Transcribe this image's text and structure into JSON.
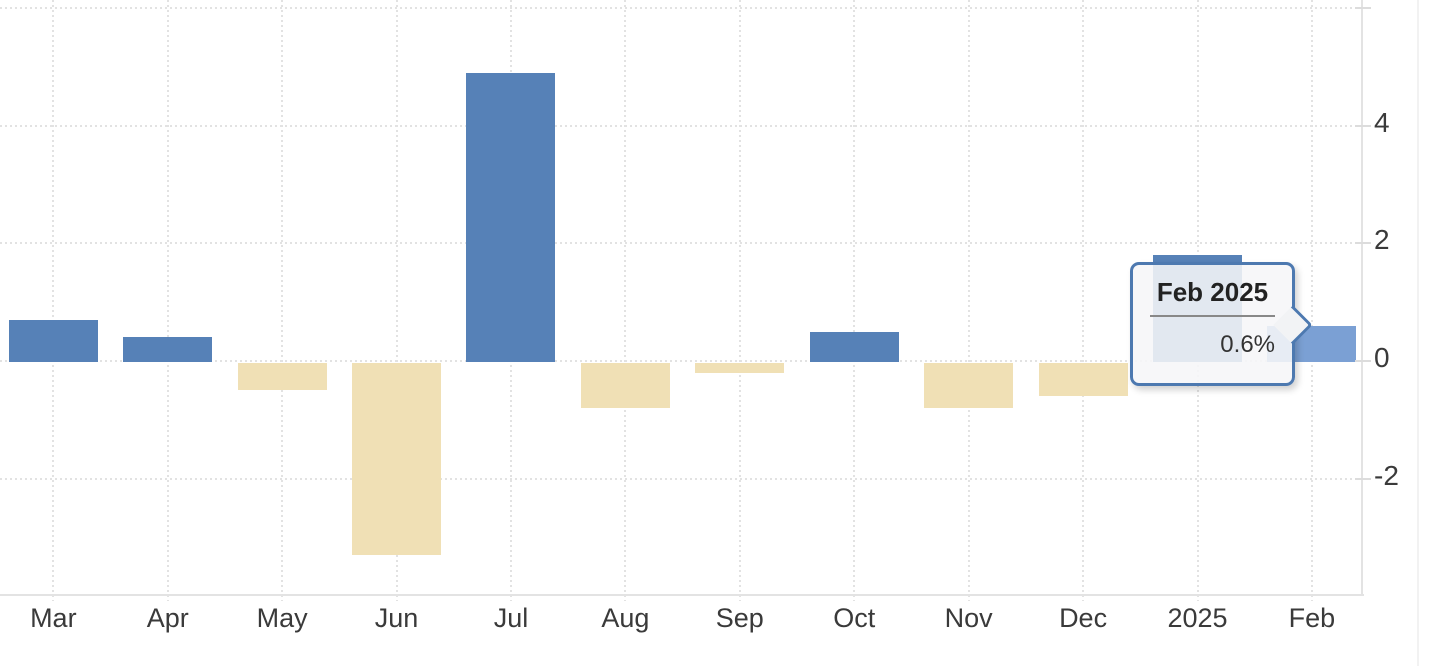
{
  "chart_data": {
    "type": "bar",
    "categories": [
      "Mar",
      "Apr",
      "May",
      "Jun",
      "Jul",
      "Aug",
      "Sep",
      "Oct",
      "Nov",
      "Dec",
      "2025",
      "Feb"
    ],
    "values": [
      0.7,
      0.4,
      -0.5,
      -3.3,
      4.9,
      -0.8,
      -0.2,
      0.5,
      -0.8,
      -0.6,
      1.8,
      0.6
    ],
    "unit": "%",
    "yticks": [
      4,
      2,
      0,
      -2
    ],
    "gridlines": [
      6,
      4,
      2,
      0,
      -2
    ],
    "ylim": [
      -4,
      6.2
    ],
    "grid": true,
    "legend": "none",
    "colors": {
      "positive": "#5681b7",
      "negative": "#f0e0b5",
      "highlight": "#7ba0d4",
      "gridline": "#e2e2e2",
      "axis": "#e3e3e3",
      "text": "#3a3a3a",
      "tooltip_border": "#4d79b0"
    },
    "highlighted_index": 11
  },
  "tooltip": {
    "title": "Feb 2025",
    "value": "0.6%"
  }
}
